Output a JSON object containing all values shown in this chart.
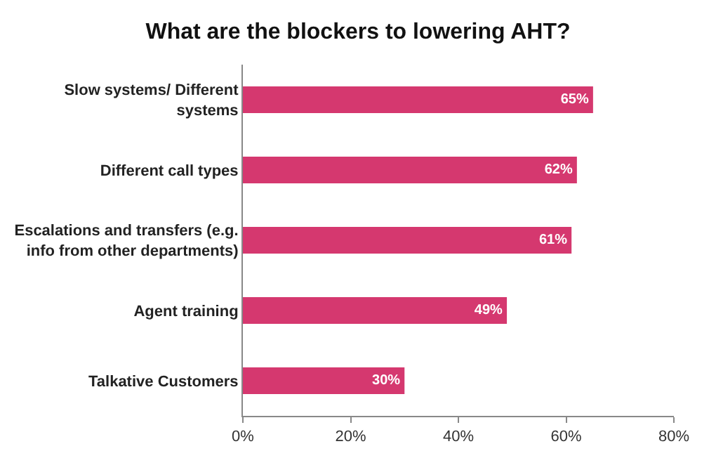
{
  "chart_data": {
    "type": "bar",
    "orientation": "horizontal",
    "title": "What are the blockers to lowering AHT?",
    "categories": [
      "Slow systems/ Different\nsystems",
      "Different call types",
      "Escalations and transfers (e.g.\ninfo from other departments)",
      "Agent training",
      "Talkative Customers"
    ],
    "values": [
      65,
      62,
      61,
      49,
      30
    ],
    "value_labels": [
      "65%",
      "62%",
      "61%",
      "49%",
      "30%"
    ],
    "color": "#d5386f",
    "xlim": [
      0,
      80
    ],
    "xticks": [
      {
        "value": 0,
        "label": "0%"
      },
      {
        "value": 20,
        "label": "20%"
      },
      {
        "value": 40,
        "label": "40%"
      },
      {
        "value": 60,
        "label": "60%"
      },
      {
        "value": 80,
        "label": "80%"
      }
    ],
    "grid": false,
    "legend": false
  }
}
